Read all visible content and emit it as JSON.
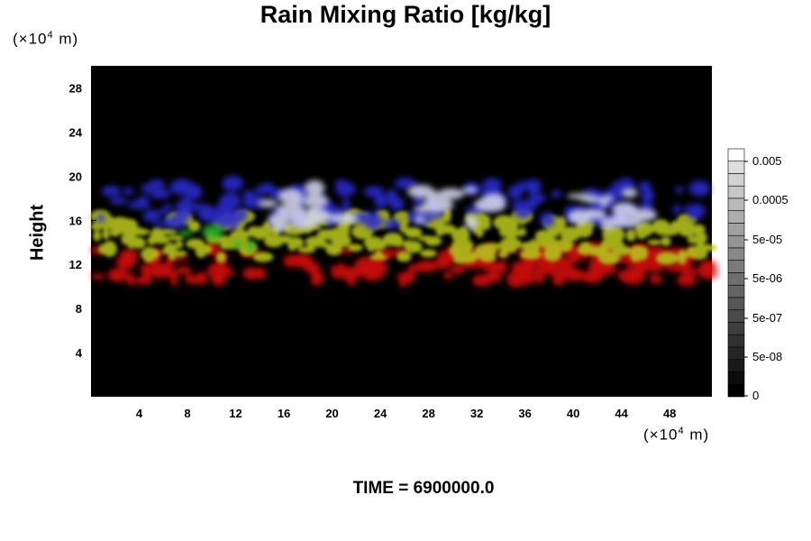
{
  "title": "Rain Mixing Ratio [kg/kg]",
  "y_unit": {
    "prefix": "(×10",
    "exp": "4",
    "suffix": " m)"
  },
  "x_unit": {
    "prefix": "(×10",
    "exp": "4",
    "suffix": " m)"
  },
  "y_axis_label": "Height",
  "time_label": "TIME = 6900000.0",
  "chart_data": {
    "type": "heatmap",
    "title": "Rain Mixing Ratio [kg/kg]",
    "xlabel": "",
    "ylabel": "Height",
    "x_unit": "×10^4 m",
    "y_unit": "×10^4 m",
    "xlim": [
      0,
      51.5
    ],
    "ylim": [
      0,
      30
    ],
    "x_ticks": [
      "4",
      "8",
      "12",
      "16",
      "20",
      "24",
      "28",
      "32",
      "36",
      "40",
      "44",
      "48"
    ],
    "y_ticks": [
      "4",
      "8",
      "12",
      "16",
      "20",
      "24",
      "28"
    ],
    "background_color": "#000000",
    "layers": [
      {
        "color": "#dd1010",
        "y_range": [
          10.5,
          13.5
        ]
      },
      {
        "color": "#b8c41a",
        "y_range": [
          12.5,
          16.5
        ]
      },
      {
        "color": "#2a2ad0",
        "y_range": [
          15.5,
          19.5
        ]
      },
      {
        "color": "#d4d6ee",
        "y_range": [
          15.5,
          19.0
        ]
      },
      {
        "color": "#2bb52b",
        "y_range": [
          13.5,
          15.0
        ]
      }
    ],
    "colorbar": {
      "scale": "log",
      "ticks": [
        "0.005",
        "0.0005",
        "5e-05",
        "5e-06",
        "5e-07",
        "5e-08",
        "0"
      ],
      "colors": [
        "#ffffff",
        "#000000"
      ]
    }
  }
}
